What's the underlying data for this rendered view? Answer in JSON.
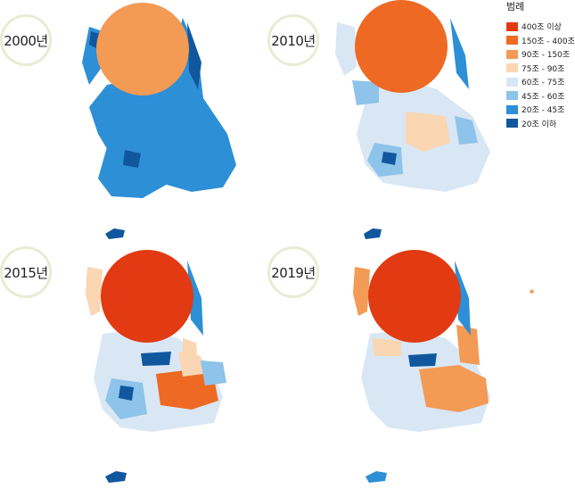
{
  "legend": {
    "title": "범례",
    "items": [
      {
        "label": "400조 이상",
        "color": "#e23a12"
      },
      {
        "label": "150조 - 400조",
        "color": "#ee6a24"
      },
      {
        "label": "90조 - 150조",
        "color": "#f39a55"
      },
      {
        "label": "75조 - 90조",
        "color": "#fad6b2"
      },
      {
        "label": "60조 - 75조",
        "color": "#d9e7f5"
      },
      {
        "label": "45조 - 60조",
        "color": "#8ec3ea"
      },
      {
        "label": "20조 - 45조",
        "color": "#2d8fd6"
      },
      {
        "label": "20조 이하",
        "color": "#10579e"
      }
    ]
  },
  "maps": [
    {
      "year": "2000년",
      "capital_color": "#f39a55",
      "region_color": "#2d8fd6"
    },
    {
      "year": "2010년",
      "capital_color": "#ee6a24",
      "region_color": "#d9e7f5"
    },
    {
      "year": "2015년",
      "capital_color": "#e23a12",
      "region_color": "#d9e7f5"
    },
    {
      "year": "2019년",
      "capital_color": "#e23a12",
      "region_color": "#d9e7f5"
    }
  ]
}
